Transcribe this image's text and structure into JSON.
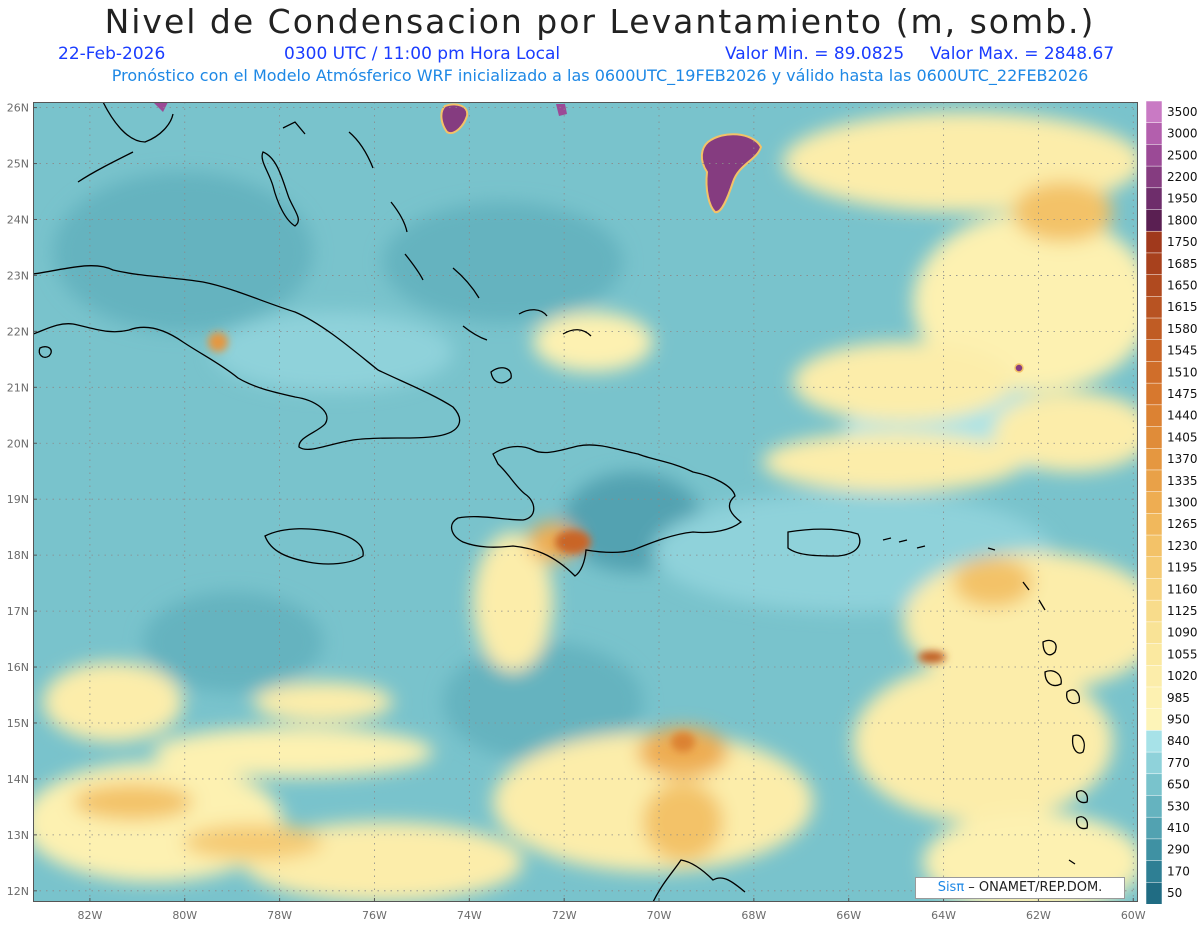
{
  "title": "Nivel de Condensacion por Levantamiento (m, somb.)",
  "header": {
    "date": "22-Feb-2026",
    "time": "0300 UTC / 11:00 pm Hora Local",
    "min_label": "Valor Min. = 89.0825",
    "max_label": "Valor Max. = 2848.67",
    "subtitle": "Pronóstico con el Modelo Atmósferico WRF inicializado a las 0600UTC_19FEB2026 y válido hasta las  0600UTC_22FEB2026"
  },
  "map": {
    "lon_range": [
      -83.2,
      -59.9
    ],
    "lat_range": [
      11.8,
      26.1
    ],
    "lon_ticks": [
      "82W",
      "80W",
      "78W",
      "76W",
      "74W",
      "72W",
      "70W",
      "68W",
      "66W",
      "64W",
      "62W",
      "60W"
    ],
    "lon_values": [
      -82,
      -80,
      -78,
      -76,
      -74,
      -72,
      -70,
      -68,
      -66,
      -64,
      -62,
      -60
    ],
    "lat_ticks": [
      "26N",
      "25N",
      "24N",
      "23N",
      "22N",
      "21N",
      "20N",
      "19N",
      "18N",
      "17N",
      "16N",
      "15N",
      "14N",
      "13N",
      "12N"
    ],
    "lat_values": [
      26,
      25,
      24,
      23,
      22,
      21,
      20,
      19,
      18,
      17,
      16,
      15,
      14,
      13,
      12
    ]
  },
  "colorbar": {
    "levels": [
      "3500",
      "3000",
      "2500",
      "2200",
      "1950",
      "1800",
      "1750",
      "1685",
      "1650",
      "1615",
      "1580",
      "1545",
      "1510",
      "1475",
      "1440",
      "1405",
      "1370",
      "1335",
      "1300",
      "1265",
      "1230",
      "1195",
      "1160",
      "1125",
      "1090",
      "1055",
      "1020",
      "985",
      "950",
      "840",
      "770",
      "650",
      "530",
      "410",
      "290",
      "170",
      "50"
    ],
    "colors": [
      "#c97ac4",
      "#b35fad",
      "#9b4a96",
      "#853c80",
      "#6e2d6b",
      "#5a1f52",
      "#a0391c",
      "#a8411d",
      "#b04a1f",
      "#b85322",
      "#c05c24",
      "#c96527",
      "#d06e2a",
      "#d7782e",
      "#dc8233",
      "#e08c39",
      "#e59740",
      "#e9a148",
      "#eead52",
      "#f1b85c",
      "#f3c268",
      "#f5cb74",
      "#f7d480",
      "#f8dc8b",
      "#f9e396",
      "#fbe9a0",
      "#fcedaa",
      "#fdf1b1",
      "#fdf4b8",
      "#a7e2e8",
      "#8fd2da",
      "#79c3cc",
      "#65b3bf",
      "#52a2b1",
      "#3f91a3",
      "#2e7f94",
      "#206c83"
    ]
  },
  "credit": {
    "brand": "Sisπ",
    "text": " – ONAMET/REP.DOM."
  },
  "colors": {
    "coast": "#000000",
    "ocean_base": "#79c3cc",
    "dry_yellow": "#fcedaa",
    "orange": "#e9a148",
    "purple": "#853c80"
  }
}
